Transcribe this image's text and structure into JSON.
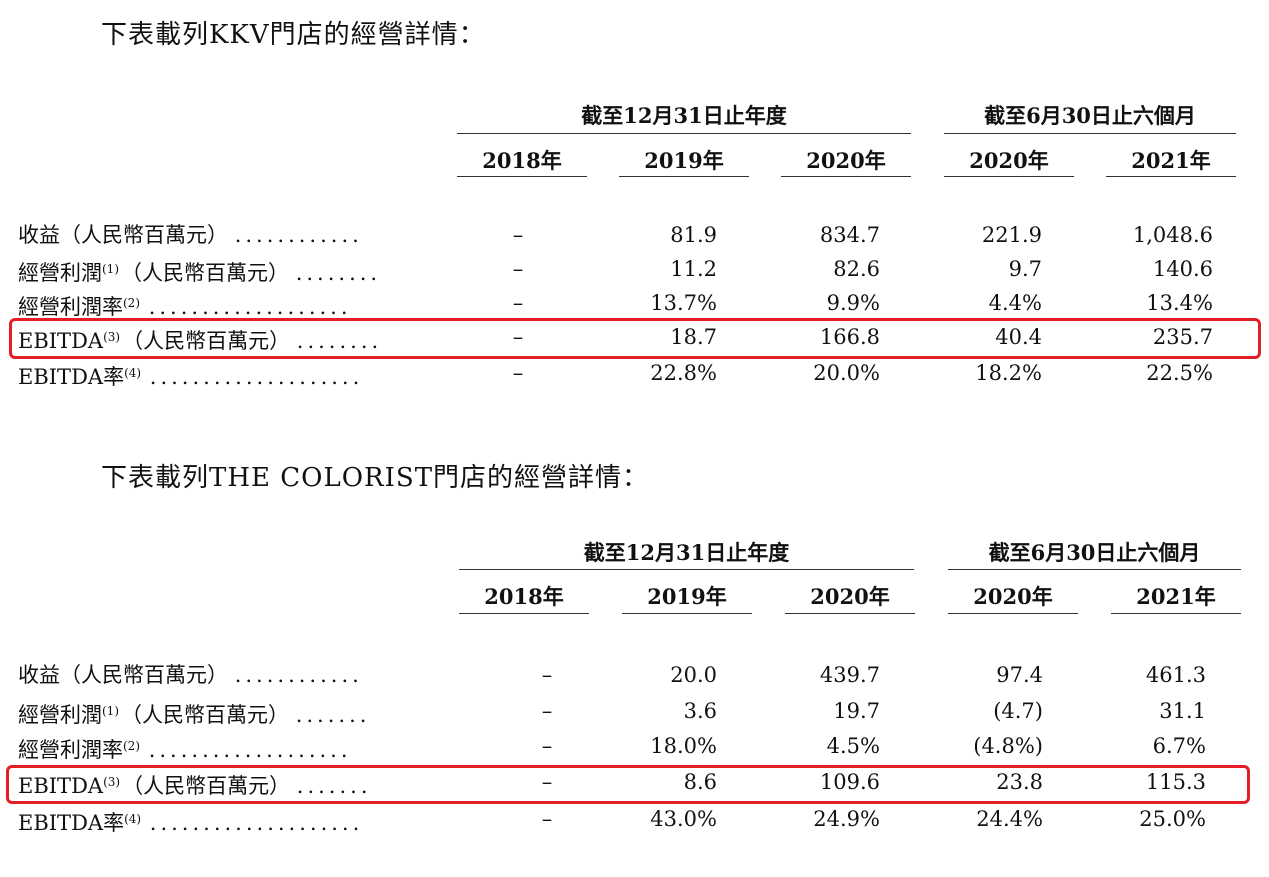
{
  "sections": [
    {
      "intro": "下表載列KKV門店的經營詳情：",
      "group_headers": [
        "截至12月31日止年度",
        "截至6月30日止六個月"
      ],
      "columns": [
        "2018年",
        "2019年",
        "2020年",
        "2020年",
        "2021年"
      ],
      "rows": [
        {
          "label": "收益",
          "note": "",
          "unit": "（人民幣百萬元）",
          "dots": "............",
          "values": [
            "–",
            "81.9",
            "834.7",
            "221.9",
            "1,048.6"
          ]
        },
        {
          "label": "經營利潤",
          "note": "(1)",
          "unit": "（人民幣百萬元）",
          "dots": "........",
          "values": [
            "–",
            "11.2",
            "82.6",
            "9.7",
            "140.6"
          ]
        },
        {
          "label": "經營利潤率",
          "note": "(2)",
          "unit": "",
          "dots": "...................",
          "values": [
            "–",
            "13.7%",
            "9.9%",
            "4.4%",
            "13.4%"
          ]
        },
        {
          "label": "EBITDA",
          "note": "(3)",
          "unit": "（人民幣百萬元）",
          "dots": "........",
          "values": [
            "–",
            "18.7",
            "166.8",
            "40.4",
            "235.7"
          ]
        },
        {
          "label": "EBITDA率",
          "note": "(4)",
          "unit": "",
          "dots": "....................",
          "values": [
            "–",
            "22.8%",
            "20.0%",
            "18.2%",
            "22.5%"
          ]
        }
      ],
      "highlight_color": "#e31e24"
    },
    {
      "intro": "下表載列THE COLORIST門店的經營詳情：",
      "group_headers": [
        "截至12月31日止年度",
        "截至6月30日止六個月"
      ],
      "columns": [
        "2018年",
        "2019年",
        "2020年",
        "2020年",
        "2021年"
      ],
      "rows": [
        {
          "label": "收益",
          "note": "",
          "unit": "（人民幣百萬元）",
          "dots": "............",
          "values": [
            "–",
            "20.0",
            "439.7",
            "97.4",
            "461.3"
          ]
        },
        {
          "label": "經營利潤",
          "note": "(1)",
          "unit": "（人民幣百萬元）",
          "dots": ".......",
          "values": [
            "–",
            "3.6",
            "19.7",
            "(4.7)",
            "31.1"
          ]
        },
        {
          "label": "經營利潤率",
          "note": "(2)",
          "unit": "",
          "dots": "...................",
          "values": [
            "–",
            "18.0%",
            "4.5%",
            "(4.8%)",
            "6.7%"
          ]
        },
        {
          "label": "EBITDA",
          "note": "(3)",
          "unit": "（人民幣百萬元）",
          "dots": ".......",
          "values": [
            "–",
            "8.6",
            "109.6",
            "23.8",
            "115.3"
          ]
        },
        {
          "label": "EBITDA率",
          "note": "(4)",
          "unit": "",
          "dots": "....................",
          "values": [
            "–",
            "43.0%",
            "24.9%",
            "24.4%",
            "25.0%"
          ]
        }
      ],
      "highlight_color": "#e31e24"
    }
  ]
}
